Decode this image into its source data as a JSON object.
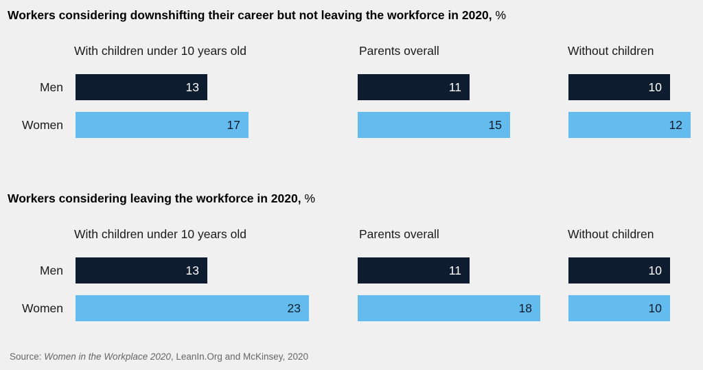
{
  "chart_data": [
    {
      "type": "bar",
      "orientation": "horizontal",
      "title": "Workers considering downshifting their career but not leaving the workforce in 2020,",
      "unit": "%",
      "categories": [
        "Men",
        "Women"
      ],
      "panels": [
        {
          "title": "With children under 10 years old",
          "values": [
            13,
            17
          ]
        },
        {
          "title": "Parents overall",
          "values": [
            11,
            15
          ]
        },
        {
          "title": "Without children",
          "values": [
            10,
            12
          ]
        }
      ],
      "colors": {
        "Men": "#0e1c2f",
        "Women": "#63bbee"
      }
    },
    {
      "type": "bar",
      "orientation": "horizontal",
      "title": "Workers considering leaving the workforce in 2020,",
      "unit": "%",
      "categories": [
        "Men",
        "Women"
      ],
      "panels": [
        {
          "title": "With children under 10 years old",
          "values": [
            13,
            23
          ]
        },
        {
          "title": "Parents overall",
          "values": [
            11,
            18
          ]
        },
        {
          "title": "Without children",
          "values": [
            10,
            10
          ]
        }
      ],
      "colors": {
        "Men": "#0e1c2f",
        "Women": "#63bbee"
      }
    }
  ],
  "source": {
    "prefix": "Source: ",
    "publication": "Women in the Workplace 2020",
    "rest": ", LeanIn.Org and McKinsey, 2020"
  }
}
